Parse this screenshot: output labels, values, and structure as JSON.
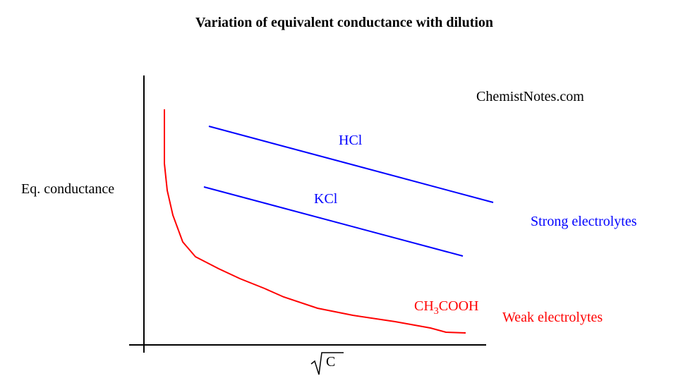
{
  "title": "Variation of equivalent conductance with dilution",
  "watermark": "ChemistNotes.com",
  "y_axis_label": "Eq. conductance",
  "x_axis_label": "C",
  "curves": [
    {
      "label": "HCl"
    },
    {
      "label": "KCl"
    },
    {
      "label_parts": [
        "CH",
        "3",
        "COOH"
      ]
    }
  ],
  "groups": [
    "Strong electrolytes",
    "Weak electrolytes"
  ]
}
